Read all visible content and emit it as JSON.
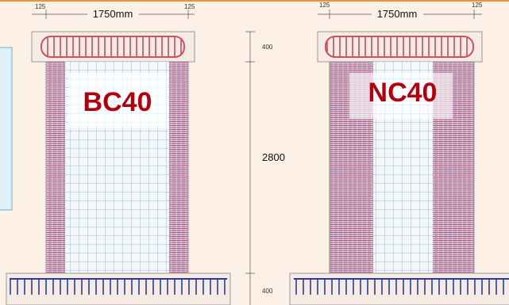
{
  "specimens": [
    {
      "label": "BC40",
      "dimensions": {
        "left": "125",
        "width": "1750mm",
        "right": "125"
      }
    },
    {
      "label": "NC40",
      "dimensions": {
        "left": "125",
        "width": "1750mm",
        "right": "125"
      }
    }
  ],
  "vertical_dimensions": [
    "400",
    "2800",
    "400"
  ]
}
